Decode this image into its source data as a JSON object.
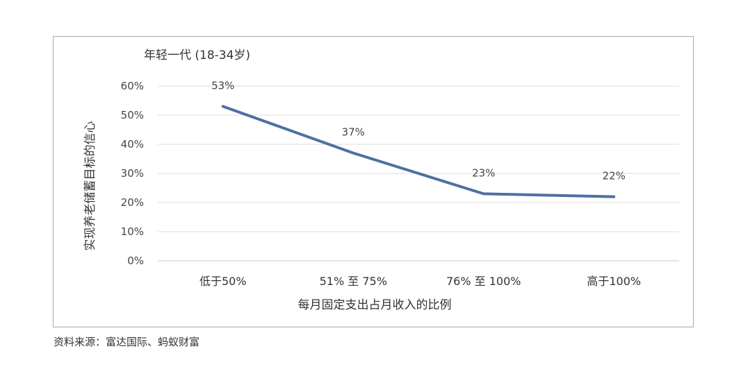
{
  "chart_data": {
    "type": "line",
    "title": "年轻一代 (18-34岁)",
    "xlabel": "每月固定支出占月收入的比例",
    "ylabel": "实现养老储蓄目标的信心",
    "categories": [
      "低于50%",
      "51% 至 75%",
      "76% 至 100%",
      "高于100%"
    ],
    "series": [
      {
        "values": [
          53,
          37,
          23,
          22
        ],
        "labels": [
          "53%",
          "37%",
          "23%",
          "22%"
        ],
        "color": "#4f6fa3"
      }
    ],
    "yticks": [
      "0%",
      "10%",
      "20%",
      "30%",
      "40%",
      "50%",
      "60%"
    ],
    "ylim": [
      0,
      60
    ],
    "grid": true,
    "legend": "none"
  },
  "source_note": "资料来源：富达国际、蚂蚁财富"
}
